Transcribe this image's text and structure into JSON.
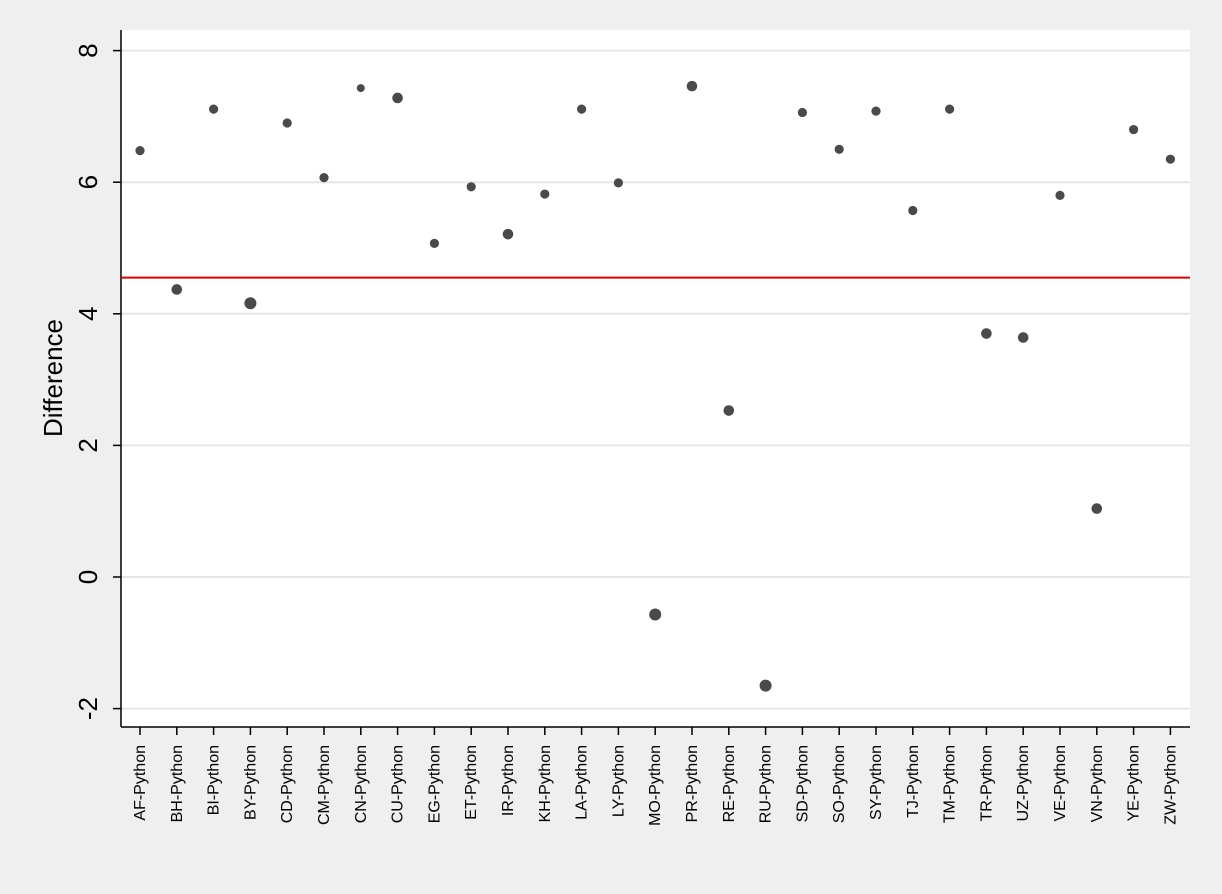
{
  "chart_data": {
    "type": "scatter",
    "title": "",
    "xlabel": "",
    "ylabel": "Difference",
    "ylim": [
      -2.3,
      8.3
    ],
    "yticks": [
      -2,
      0,
      2,
      4,
      6,
      8
    ],
    "grid": true,
    "reference_line": {
      "y": 4.55,
      "color": "#e00000"
    },
    "marker_color": "#4a4a4a",
    "categories": [
      "AF-Python",
      "BH-Python",
      "BI-Python",
      "BY-Python",
      "CD-Python",
      "CM-Python",
      "CN-Python",
      "CU-Python",
      "EG-Python",
      "ET-Python",
      "IR-Python",
      "KH-Python",
      "LA-Python",
      "LY-Python",
      "MO-Python",
      "PR-Python",
      "RE-Python",
      "RU-Python",
      "SD-Python",
      "SO-Python",
      "SY-Python",
      "TJ-Python",
      "TM-Python",
      "TR-Python",
      "UZ-Python",
      "VE-Python",
      "VN-Python",
      "YE-Python",
      "ZW-Python"
    ],
    "values": [
      6.48,
      4.37,
      7.11,
      4.16,
      6.9,
      6.07,
      7.43,
      7.28,
      5.07,
      5.93,
      5.21,
      5.82,
      7.11,
      5.99,
      -0.57,
      7.46,
      2.53,
      -1.65,
      7.06,
      6.5,
      7.08,
      5.57,
      7.11,
      3.7,
      3.64,
      5.8,
      1.04,
      6.8,
      6.35
    ],
    "marker_weights": [
      2,
      3,
      2,
      4,
      2,
      2,
      1,
      3,
      2,
      2,
      3,
      2,
      2,
      2,
      4,
      3,
      3,
      4,
      2,
      2,
      2,
      2,
      2,
      3,
      3,
      2,
      3,
      2,
      2
    ]
  }
}
